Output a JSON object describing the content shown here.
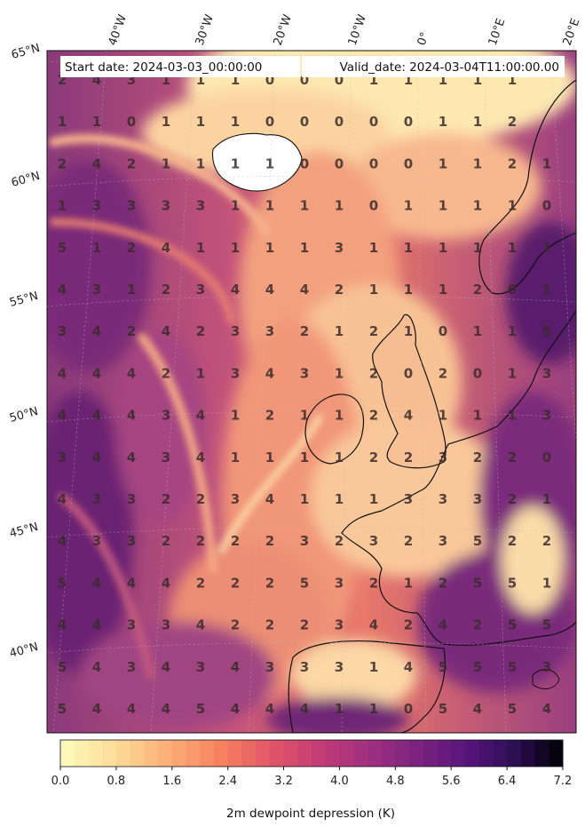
{
  "header": {
    "start_label": "Start date: 2024-03-03_00:00:00",
    "valid_label": "Valid_date: 2024-03-04T11:00:00.00"
  },
  "lon_labels": [
    "40°W",
    "30°W",
    "20°W",
    "10°W",
    "0°",
    "10°E",
    "20°E"
  ],
  "lat_labels": [
    "65°N",
    "60°N",
    "55°N",
    "50°N",
    "45°N",
    "40°N"
  ],
  "colorbar": {
    "label": "2m dewpoint depression (K)",
    "ticks": [
      "0.0",
      "0.8",
      "1.6",
      "2.4",
      "3.2",
      "4.0",
      "4.8",
      "5.6",
      "6.4",
      "7.2"
    ],
    "range": [
      0.0,
      7.2
    ],
    "colormap": "magma_r"
  },
  "grid_values": [
    [
      2,
      4,
      3,
      1,
      1,
      1,
      0,
      0,
      0,
      1,
      1,
      1,
      1,
      1
    ],
    [
      1,
      1,
      0,
      1,
      1,
      1,
      0,
      0,
      0,
      0,
      0,
      1,
      1,
      2
    ],
    [
      2,
      4,
      2,
      1,
      1,
      1,
      1,
      0,
      0,
      0,
      0,
      1,
      1,
      2,
      1
    ],
    [
      1,
      3,
      3,
      3,
      3,
      1,
      1,
      1,
      1,
      0,
      1,
      1,
      1,
      1,
      0
    ],
    [
      5,
      1,
      2,
      4,
      1,
      1,
      1,
      1,
      3,
      1,
      1,
      1,
      1,
      1,
      1
    ],
    [
      4,
      3,
      1,
      2,
      3,
      4,
      4,
      4,
      2,
      1,
      1,
      1,
      2,
      0,
      1
    ],
    [
      3,
      4,
      2,
      4,
      2,
      3,
      3,
      2,
      1,
      2,
      1,
      0,
      1,
      1,
      5
    ],
    [
      4,
      4,
      4,
      2,
      1,
      3,
      4,
      3,
      1,
      2,
      0,
      2,
      0,
      1,
      3
    ],
    [
      4,
      4,
      4,
      3,
      4,
      1,
      2,
      1,
      1,
      2,
      4,
      1,
      1,
      1,
      3
    ],
    [
      3,
      4,
      4,
      3,
      4,
      1,
      1,
      1,
      1,
      2,
      2,
      3,
      2,
      2,
      0
    ],
    [
      4,
      3,
      3,
      2,
      2,
      3,
      4,
      1,
      1,
      1,
      3,
      3,
      3,
      2,
      1
    ],
    [
      4,
      3,
      3,
      2,
      2,
      2,
      2,
      3,
      2,
      3,
      2,
      3,
      5,
      2,
      2
    ],
    [
      5,
      4,
      4,
      4,
      2,
      2,
      2,
      5,
      3,
      2,
      1,
      2,
      5,
      5,
      1
    ],
    [
      4,
      4,
      3,
      3,
      4,
      2,
      2,
      2,
      3,
      4,
      2,
      4,
      2,
      5,
      5
    ],
    [
      5,
      4,
      3,
      4,
      3,
      4,
      3,
      3,
      3,
      1,
      4,
      5,
      5,
      5,
      3
    ],
    [
      5,
      4,
      4,
      4,
      5,
      4,
      4,
      4,
      1,
      1,
      0,
      5,
      4,
      5,
      4
    ]
  ]
}
